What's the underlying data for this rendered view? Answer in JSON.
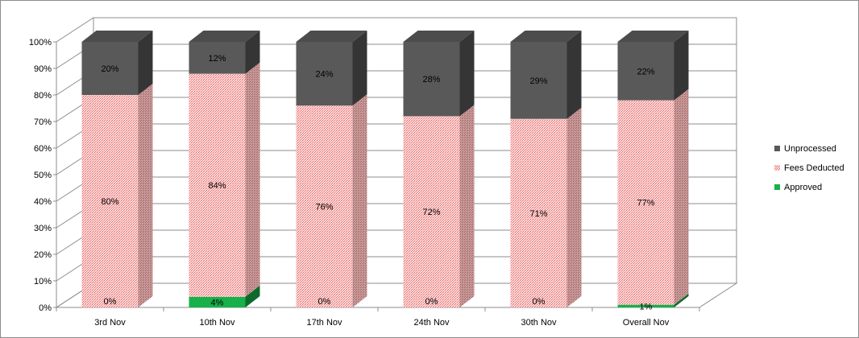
{
  "chart_data": {
    "type": "bar",
    "stacked": true,
    "percent": true,
    "categories": [
      "3rd Nov",
      "10th Nov",
      "17th Nov",
      "24th Nov",
      "30th Nov",
      "Overall Nov"
    ],
    "series": [
      {
        "name": "Approved",
        "values": [
          0,
          4,
          0,
          0,
          0,
          1
        ],
        "labels": [
          "0%",
          "4%",
          "0%",
          "0%",
          "0%",
          "1%"
        ],
        "color": "#16b14a"
      },
      {
        "name": "Fees Deducted",
        "values": [
          80,
          84,
          76,
          72,
          71,
          77
        ],
        "labels": [
          "80%",
          "84%",
          "76%",
          "72%",
          "71%",
          "77%"
        ],
        "color": "#f4c2c2"
      },
      {
        "name": "Unprocessed",
        "values": [
          20,
          12,
          24,
          28,
          29,
          22
        ],
        "labels": [
          "20%",
          "12%",
          "24%",
          "28%",
          "29%",
          "22%"
        ],
        "color": "#595959"
      }
    ],
    "yticks": [
      "0%",
      "10%",
      "20%",
      "30%",
      "40%",
      "50%",
      "60%",
      "70%",
      "80%",
      "90%",
      "100%"
    ],
    "ylim": [
      0,
      100
    ],
    "grid": true,
    "legend": "right",
    "legend_order": [
      "Unprocessed",
      "Fees Deducted",
      "Approved"
    ]
  }
}
